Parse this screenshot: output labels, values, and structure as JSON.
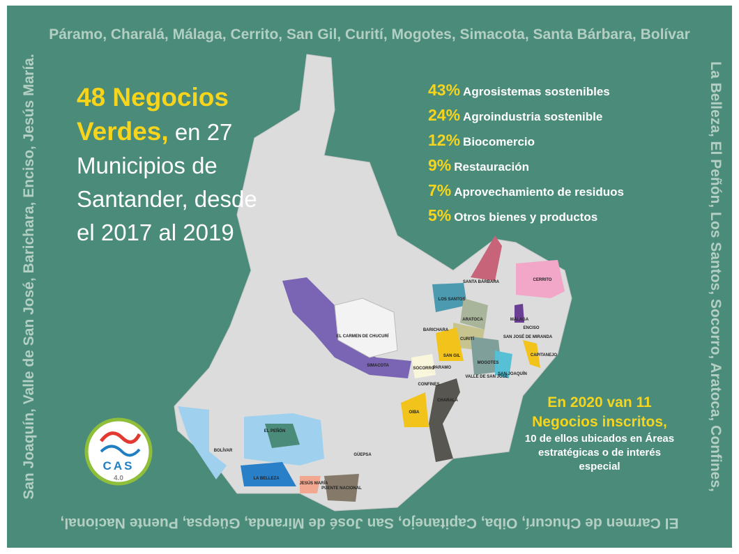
{
  "border": {
    "top": "Páramo, Charalá, Málaga, Cerrito, San Gil, Curití, Mogotes, Simacota, Santa Bárbara, Bolívar",
    "left": "San Joaquín, Valle de San José, Barichara, Enciso, Jesús María.",
    "right": "La Belleza, El Peñón, Los Santos, Socorro, Aratoca, Confines,",
    "bottom": "El Carmen de Chucurí, Oiba, Capitanejo, San José de Miranda, Güepsa, Puente Nacional,"
  },
  "headline": {
    "highlight": "48 Negocios Verdes,",
    "text": "en 27 Municipios de Santander, desde el 2017 al 2019"
  },
  "categories": [
    {
      "percent": "43%",
      "label": "Agrosistemas sostenibles"
    },
    {
      "percent": "24%",
      "label": "Agroindustria sostenible"
    },
    {
      "percent": "12%",
      "label": "Biocomercio"
    },
    {
      "percent": "9%",
      "label": "Restauración"
    },
    {
      "percent": "7%",
      "label": "Aprovechamiento de residuos"
    },
    {
      "percent": "5%",
      "label": "Otros bienes y productos"
    }
  ],
  "note": {
    "highlight": "En 2020 van 11 Negocios inscritos,",
    "text": "10 de ellos ubicados en Áreas estratégicas o de interés especial"
  },
  "logo": {
    "name": "CAS",
    "version": "4.0"
  },
  "map_labels": [
    "SANTA BÁRBARA",
    "CERRITO",
    "LOS SANTOS",
    "MÁLAGA",
    "ENCISO",
    "SAN JOSÉ DE MIRANDA",
    "ARATOCA",
    "BARICHARA",
    "EL CARMEN DE CHUCURÍ",
    "CURITÍ",
    "SAN GIL",
    "CAPITANEJO",
    "SIMACOTA",
    "SOCORRO",
    "PARAMO",
    "MOGOTES",
    "SAN JOAQUÍN",
    "VALLE DE SAN JOSÉ",
    "CONFINES",
    "OIBA",
    "CHARALÁ",
    "EL PEÑÓN",
    "BOLÍVAR",
    "GÜEPSA",
    "LA BELLEZA",
    "JESÚS MARÍA",
    "PUENTE NACIONAL"
  ]
}
